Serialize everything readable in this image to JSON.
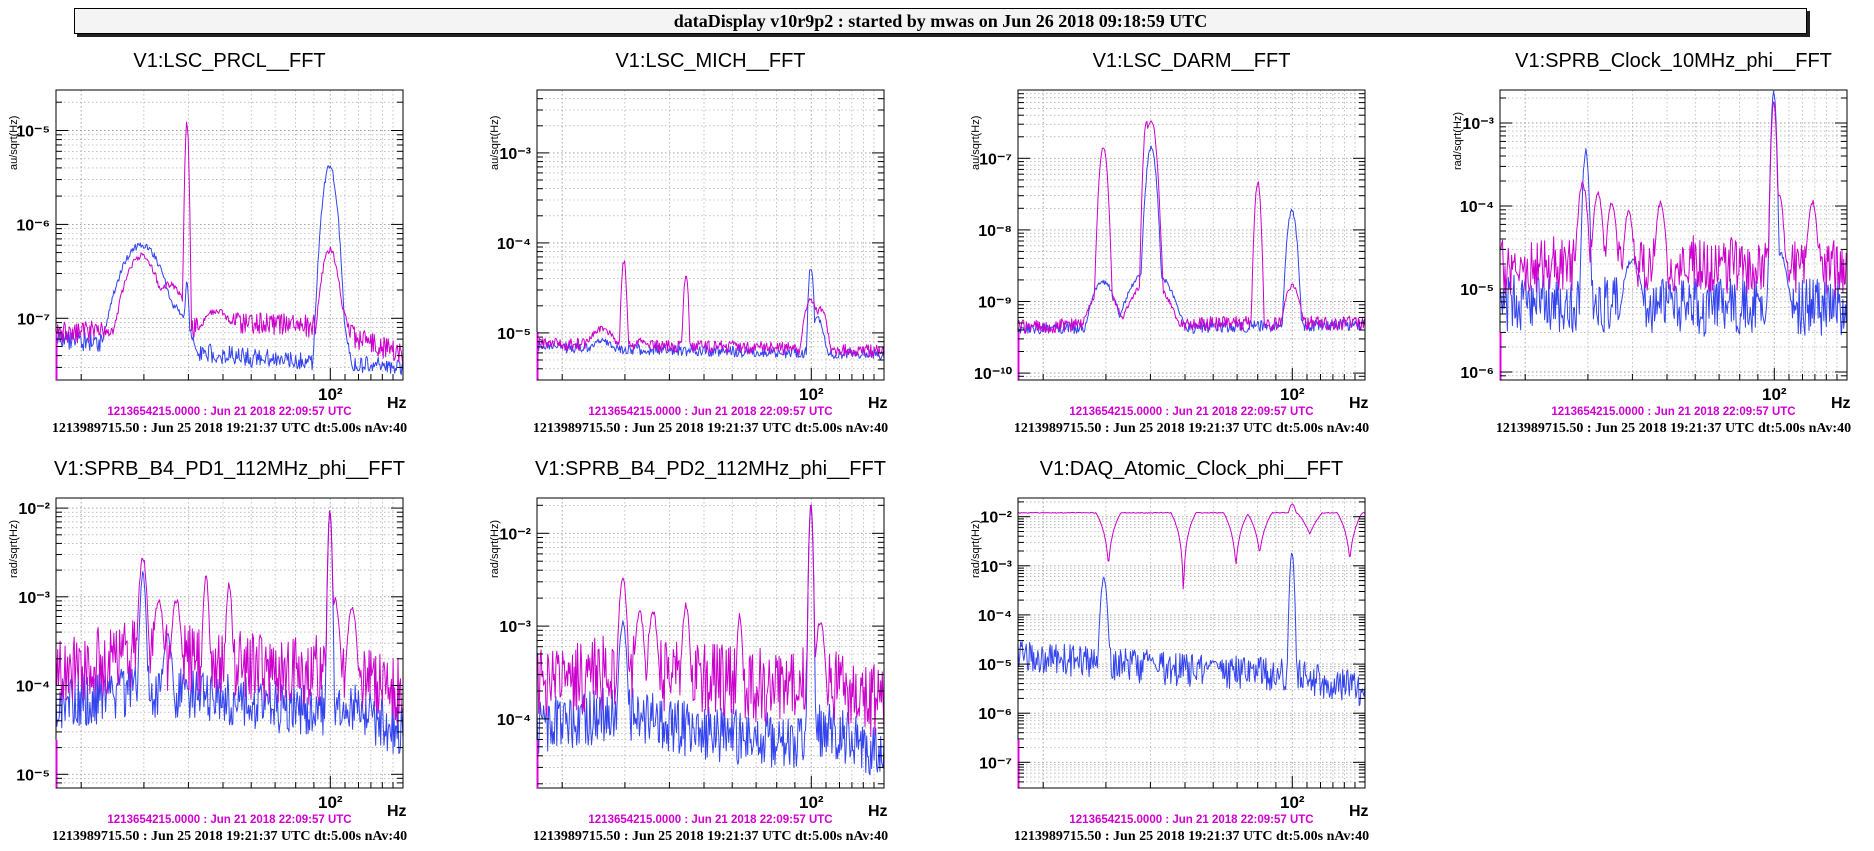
{
  "banner": "dataDisplay v10r9p2 : started by mwas on Jun 26 2018 09:18:59 UTC",
  "colors": {
    "reference": "#cc00cc",
    "live": "#3344ee",
    "grid": "#9a9a9a"
  },
  "chart_data": [
    {
      "type": "line",
      "title": "V1:LSC_PRCL__FFT",
      "ylabel": "au/sqrt(Hz)",
      "xlabel": "Hz",
      "xscale": "log",
      "yscale": "log",
      "xlim": [
        17,
        160
      ],
      "ylim": [
        2.2e-08,
        2.7e-05
      ],
      "x_tick_labels": [
        "10²"
      ],
      "y_tick_labels": [
        "10⁻⁷",
        "10⁻⁶",
        "10⁻⁵"
      ],
      "reference_time": "1213654215.0000 : Jun 21 2018 22:09:57 UTC",
      "live_time": "1213989715.50 : Jun 25 2018 19:21:37 UTC dt:5.00s nAv:40",
      "series": [
        {
          "role": "reference",
          "floor": [
            [
              17,
              7e-08
            ],
            [
              40,
              8e-08
            ],
            [
              60,
              9e-08
            ],
            [
              100,
              8e-08
            ],
            [
              160,
              4e-08
            ]
          ],
          "noise": 0.12,
          "peaks": [
            [
              29.5,
              5e-07,
              0.04
            ],
            [
              30.5,
              3e-07,
              0.05
            ],
            [
              35.5,
              2.5e-07,
              0.04
            ],
            [
              39.6,
              1.3e-05,
              0.004
            ],
            [
              48,
              1.3e-07,
              0.05
            ],
            [
              99.8,
              5.8e-07,
              0.02
            ],
            [
              104,
              1.6e-07,
              0.03
            ]
          ]
        },
        {
          "role": "live",
          "floor": [
            [
              17,
              6e-08
            ],
            [
              40,
              4.5e-08
            ],
            [
              60,
              3.8e-08
            ],
            [
              100,
              3.4e-08
            ],
            [
              160,
              3e-08
            ]
          ],
          "noise": 0.1,
          "peaks": [
            [
              29.5,
              6.5e-07,
              0.05
            ],
            [
              31,
              3e-07,
              0.05
            ],
            [
              35.5,
              1.5e-07,
              0.05
            ],
            [
              39.6,
              2.5e-07,
              0.005
            ],
            [
              99.6,
              4.5e-06,
              0.015
            ],
            [
              102,
              1.5e-07,
              0.03
            ]
          ]
        }
      ]
    },
    {
      "type": "line",
      "title": "V1:LSC_MICH__FFT",
      "ylabel": "au/sqrt(Hz)",
      "xlabel": "Hz",
      "xscale": "log",
      "yscale": "log",
      "xlim": [
        17,
        160
      ],
      "ylim": [
        3e-06,
        0.005
      ],
      "x_tick_labels": [
        "10²"
      ],
      "y_tick_labels": [
        "10⁻⁵",
        "10⁻⁴",
        "10⁻³"
      ],
      "reference_time": "1213654215.0000 : Jun 21 2018 22:09:57 UTC",
      "live_time": "1213989715.50 : Jun 25 2018 19:21:37 UTC dt:5.00s nAv:40",
      "series": [
        {
          "role": "reference",
          "floor": [
            [
              17,
              7.5e-06
            ],
            [
              60,
              7e-06
            ],
            [
              160,
              6.2e-06
            ]
          ],
          "noise": 0.07,
          "peaks": [
            [
              25.8,
              1.2e-05,
              0.05
            ],
            [
              29.8,
              7e-05,
              0.006
            ],
            [
              33.5,
              9e-06,
              0.03
            ],
            [
              44.5,
              4.8e-05,
              0.006
            ],
            [
              100,
              2.5e-05,
              0.02
            ],
            [
              106,
              2e-05,
              0.02
            ]
          ]
        },
        {
          "role": "live",
          "floor": [
            [
              17,
              7e-06
            ],
            [
              60,
              6.2e-06
            ],
            [
              160,
              5.8e-06
            ]
          ],
          "noise": 0.06,
          "peaks": [
            [
              25.8,
              9e-06,
              0.05
            ],
            [
              99.8,
              6e-05,
              0.006
            ],
            [
              104,
              1.6e-05,
              0.02
            ]
          ]
        }
      ]
    },
    {
      "type": "line",
      "title": "V1:LSC_DARM__FFT",
      "ylabel": "au/sqrt(Hz)",
      "xlabel": "Hz",
      "xscale": "log",
      "yscale": "log",
      "xlim": [
        17,
        160
      ],
      "ylim": [
        8e-11,
        9e-07
      ],
      "x_tick_labels": [
        "10²"
      ],
      "y_tick_labels": [
        "10⁻¹⁰",
        "10⁻⁹",
        "10⁻⁸",
        "10⁻⁷"
      ],
      "reference_time": "1213654215.0000 : Jun 21 2018 22:09:57 UTC",
      "live_time": "1213989715.50 : Jun 25 2018 19:21:37 UTC dt:5.00s nAv:40",
      "series": [
        {
          "role": "reference",
          "floor": [
            [
              17,
              4.5e-10
            ],
            [
              40,
              4.8e-10
            ],
            [
              90,
              5e-10
            ],
            [
              160,
              5e-10
            ]
          ],
          "noise": 0.1,
          "peaks": [
            [
              29.5,
              1.6e-07,
              0.008
            ],
            [
              29.5,
              1.5e-09,
              0.04
            ],
            [
              39,
              3.5e-07,
              0.006
            ],
            [
              40.2,
              3.8e-07,
              0.01
            ],
            [
              39.8,
              2e-09,
              0.05
            ],
            [
              80,
              5e-08,
              0.006
            ],
            [
              100,
              1.8e-09,
              0.02
            ]
          ]
        },
        {
          "role": "live",
          "floor": [
            [
              17,
              4.2e-10
            ],
            [
              40,
              4.2e-10
            ],
            [
              160,
              4.8e-10
            ]
          ],
          "noise": 0.08,
          "peaks": [
            [
              29.5,
              2e-09,
              0.03
            ],
            [
              40.2,
              1.5e-07,
              0.01
            ],
            [
              40,
              3e-09,
              0.05
            ],
            [
              99.8,
              2e-08,
              0.01
            ]
          ]
        }
      ]
    },
    {
      "type": "line",
      "title": "V1:SPRB_Clock_10MHz_phi__FFT",
      "ylabel": "rad/sqrt(Hz)",
      "xlabel": "Hz",
      "xscale": "log",
      "yscale": "log",
      "xlim": [
        17,
        160
      ],
      "ylim": [
        8e-07,
        0.0025
      ],
      "x_tick_labels": [
        "10²"
      ],
      "y_tick_labels": [
        "10⁻⁶",
        "10⁻⁵",
        "10⁻⁴",
        "10⁻³"
      ],
      "reference_time": "1213654215.0000 : Jun 21 2018 22:09:57 UTC",
      "live_time": "1213989715.50 : Jun 25 2018 19:21:37 UTC dt:5.00s nAv:40",
      "series": [
        {
          "role": "reference",
          "floor": [
            [
              17,
              2e-05
            ],
            [
              60,
              2e-05
            ],
            [
              160,
              1.7e-05
            ]
          ],
          "noise": 0.35,
          "peaks": [
            [
              29,
              0.0002,
              0.01
            ],
            [
              32,
              0.00015,
              0.01
            ],
            [
              35,
              0.00012,
              0.01
            ],
            [
              39,
              9e-05,
              0.01
            ],
            [
              48,
              0.00012,
              0.01
            ],
            [
              99.7,
              0.002,
              0.005
            ],
            [
              103,
              0.00015,
              0.01
            ],
            [
              128,
              0.00012,
              0.01
            ]
          ]
        },
        {
          "role": "live",
          "floor": [
            [
              17,
              7e-06
            ],
            [
              60,
              6e-06
            ],
            [
              160,
              6e-06
            ]
          ],
          "noise": 0.35,
          "peaks": [
            [
              29.6,
              0.0005,
              0.006
            ],
            [
              99.7,
              0.0025,
              0.005
            ],
            [
              40,
              2.5e-05,
              0.02
            ],
            [
              103,
              3e-05,
              0.02
            ]
          ]
        }
      ]
    },
    {
      "type": "line",
      "title": "V1:SPRB_B4_PD1_112MHz_phi__FFT",
      "ylabel": "rad/sqrt(Hz)",
      "xlabel": "Hz",
      "xscale": "log",
      "yscale": "log",
      "xlim": [
        17,
        160
      ],
      "ylim": [
        7e-06,
        0.013
      ],
      "x_tick_labels": [
        "10²"
      ],
      "y_tick_labels": [
        "10⁻⁵",
        "10⁻⁴",
        "10⁻³",
        "10⁻²"
      ],
      "reference_time": "1213654215.0000 : Jun 21 2018 22:09:57 UTC",
      "live_time": "1213989715.50 : Jun 25 2018 19:21:37 UTC dt:5.00s nAv:40",
      "series": [
        {
          "role": "reference",
          "floor": [
            [
              17,
              0.00014
            ],
            [
              30,
              0.00024
            ],
            [
              45,
              0.00018
            ],
            [
              80,
              0.00015
            ],
            [
              110,
              0.00016
            ],
            [
              160,
              8e-05
            ]
          ],
          "noise": 0.4,
          "peaks": [
            [
              29.8,
              0.003,
              0.008
            ],
            [
              33,
              0.001,
              0.01
            ],
            [
              37,
              0.001,
              0.01
            ],
            [
              44.8,
              0.0018,
              0.006
            ],
            [
              52,
              0.0015,
              0.006
            ],
            [
              99.8,
              0.01,
              0.004
            ],
            [
              103,
              0.001,
              0.01
            ],
            [
              115,
              0.0008,
              0.01
            ]
          ]
        },
        {
          "role": "live",
          "floor": [
            [
              17,
              6e-05
            ],
            [
              30,
              9e-05
            ],
            [
              50,
              7e-05
            ],
            [
              90,
              5e-05
            ],
            [
              110,
              6e-05
            ],
            [
              160,
              3e-05
            ]
          ],
          "noise": 0.3,
          "peaks": [
            [
              29.8,
              0.002,
              0.006
            ],
            [
              99.8,
              0.01,
              0.004
            ],
            [
              35,
              0.0004,
              0.01
            ]
          ]
        }
      ]
    },
    {
      "type": "line",
      "title": "V1:SPRB_B4_PD2_112MHz_phi__FFT",
      "ylabel": "rad/sqrt(Hz)",
      "xlabel": "Hz",
      "xscale": "log",
      "yscale": "log",
      "xlim": [
        17,
        160
      ],
      "ylim": [
        1.8e-05,
        0.024
      ],
      "x_tick_labels": [
        "10²"
      ],
      "y_tick_labels": [
        "10⁻⁴",
        "10⁻³",
        "10⁻²"
      ],
      "reference_time": "1213654215.0000 : Jun 21 2018 22:09:57 UTC",
      "live_time": "1213989715.50 : Jun 25 2018 19:21:37 UTC dt:5.00s nAv:40",
      "series": [
        {
          "role": "reference",
          "floor": [
            [
              17,
              0.00022
            ],
            [
              30,
              0.00035
            ],
            [
              45,
              0.00028
            ],
            [
              80,
              0.00022
            ],
            [
              110,
              0.00025
            ],
            [
              160,
              0.00014
            ]
          ],
          "noise": 0.4,
          "peaks": [
            [
              29.6,
              0.0035,
              0.008
            ],
            [
              33,
              0.0015,
              0.01
            ],
            [
              36,
              0.0015,
              0.01
            ],
            [
              44.5,
              0.0018,
              0.008
            ],
            [
              63,
              0.0014,
              0.006
            ],
            [
              99.8,
              0.022,
              0.004
            ],
            [
              106,
              0.0012,
              0.01
            ]
          ]
        },
        {
          "role": "live",
          "floor": [
            [
              17,
              8e-05
            ],
            [
              30,
              0.00012
            ],
            [
              50,
              7e-05
            ],
            [
              90,
              5.5e-05
            ],
            [
              110,
              8e-05
            ],
            [
              160,
              4e-05
            ]
          ],
          "noise": 0.3,
          "peaks": [
            [
              29.6,
              0.0012,
              0.008
            ],
            [
              99.8,
              0.022,
              0.004
            ]
          ]
        }
      ]
    },
    {
      "type": "line",
      "title": "V1:DAQ_Atomic_Clock_phi__FFT",
      "ylabel": "rad/sqrt(Hz)",
      "xlabel": "Hz",
      "xscale": "log",
      "yscale": "log",
      "xlim": [
        17,
        160
      ],
      "ylim": [
        3e-08,
        0.024
      ],
      "x_tick_labels": [
        "10²"
      ],
      "y_tick_labels": [
        "10⁻⁷",
        "10⁻⁶",
        "10⁻⁵",
        "10⁻⁴",
        "10⁻³",
        "10⁻²"
      ],
      "reference_time": "1213654215.0000 : Jun 21 2018 22:09:57 UTC",
      "live_time": "1213989715.50 : Jun 25 2018 19:21:37 UTC dt:5.00s nAv:40",
      "series": [
        {
          "role": "reference",
          "kind": "comb",
          "level": 0.012,
          "nulls": [
            30.5,
            49.5,
            69.5,
            81,
            112,
            145
          ],
          "null_depths": [
            0.001,
            0.00022,
            0.001,
            0.0018,
            0.0045,
            0.0013
          ],
          "peak_boost": [
            [
              100,
              0.018
            ]
          ]
        },
        {
          "role": "live",
          "floor": [
            [
              17,
              1.4e-05
            ],
            [
              30,
              1e-05
            ],
            [
              60,
              7e-06
            ],
            [
              100,
              6e-06
            ],
            [
              160,
              3e-06
            ]
          ],
          "noise": 0.35,
          "peaks": [
            [
              29.6,
              0.0006,
              0.006
            ],
            [
              99.8,
              0.002,
              0.004
            ],
            [
              40,
              1.3e-05,
              0.02
            ],
            [
              60,
              1.2e-05,
              0.02
            ]
          ]
        }
      ]
    }
  ]
}
